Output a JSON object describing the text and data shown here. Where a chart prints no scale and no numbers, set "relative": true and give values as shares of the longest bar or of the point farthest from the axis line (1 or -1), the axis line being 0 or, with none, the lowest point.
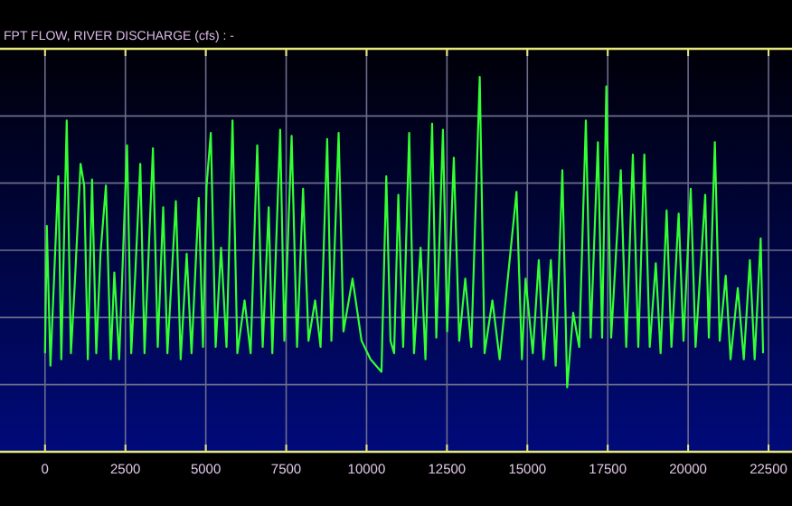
{
  "chart_data": {
    "type": "line",
    "title": "FPT FLOW, RIVER DISCHARGE (cfs) : -",
    "relative": true,
    "grid": true,
    "tick_labels": "x",
    "xlim": [
      -1400,
      23230
    ],
    "xticks": [
      0,
      2500,
      5000,
      7500,
      10000,
      12500,
      15000,
      17500,
      20000,
      22500
    ],
    "x": [
      0,
      56,
      169,
      413,
      506,
      675,
      806,
      919,
      1106,
      1219,
      1331,
      1463,
      1594,
      1725,
      1894,
      2044,
      2156,
      2306,
      2550,
      2681,
      2813,
      2963,
      3094,
      3356,
      3506,
      3675,
      3806,
      4069,
      4219,
      4406,
      4556,
      4781,
      4913,
      5025,
      5156,
      5306,
      5475,
      5644,
      5831,
      5981,
      6206,
      6394,
      6600,
      6769,
      6956,
      7069,
      7313,
      7444,
      7669,
      7838,
      8025,
      8194,
      8400,
      8569,
      8775,
      8906,
      9131,
      9281,
      9563,
      9844,
      10125,
      10463,
      10613,
      10744,
      10856,
      10988,
      11138,
      11325,
      11475,
      11681,
      11831,
      12038,
      12169,
      12375,
      12506,
      12713,
      12881,
      13069,
      13256,
      13519,
      13669,
      13913,
      14138,
      14663,
      14831,
      14944,
      15169,
      15356,
      15506,
      15731,
      15881,
      16088,
      16238,
      16425,
      16613,
      16819,
      16969,
      17194,
      17325,
      17456,
      17606,
      17906,
      18075,
      18281,
      18450,
      18638,
      18806,
      18994,
      19144,
      19331,
      19481,
      19706,
      19856,
      20081,
      20231,
      20531,
      20644,
      20831,
      20981,
      21169,
      21319,
      21544,
      21731,
      21919,
      22069,
      22256,
      22331
    ],
    "series": [
      {
        "color": "#33ff33",
        "values": [
          0.11,
          0.52,
          0.07,
          0.68,
          0.09,
          0.86,
          0.11,
          0.32,
          0.72,
          0.65,
          0.09,
          0.67,
          0.11,
          0.43,
          0.65,
          0.09,
          0.37,
          0.09,
          0.78,
          0.11,
          0.38,
          0.72,
          0.11,
          0.77,
          0.13,
          0.58,
          0.11,
          0.6,
          0.09,
          0.43,
          0.11,
          0.61,
          0.13,
          0.65,
          0.82,
          0.13,
          0.45,
          0.13,
          0.86,
          0.11,
          0.28,
          0.11,
          0.78,
          0.13,
          0.58,
          0.11,
          0.83,
          0.15,
          0.81,
          0.13,
          0.64,
          0.15,
          0.28,
          0.13,
          0.8,
          0.15,
          0.82,
          0.18,
          0.35,
          0.15,
          0.09,
          0.05,
          0.68,
          0.15,
          0.11,
          0.62,
          0.13,
          0.82,
          0.11,
          0.45,
          0.09,
          0.85,
          0.16,
          0.83,
          0.18,
          0.74,
          0.15,
          0.35,
          0.13,
          1,
          0.11,
          0.28,
          0.09,
          0.63,
          0.09,
          0.35,
          0.11,
          0.41,
          0.09,
          0.41,
          0.07,
          0.7,
          0,
          0.24,
          0.13,
          0.86,
          0.16,
          0.79,
          0.16,
          0.97,
          0.16,
          0.7,
          0.13,
          0.75,
          0.13,
          0.75,
          0.13,
          0.4,
          0.11,
          0.57,
          0.13,
          0.56,
          0.15,
          0.64,
          0.13,
          0.62,
          0.16,
          0.79,
          0.15,
          0.36,
          0.09,
          0.32,
          0.09,
          0.41,
          0.09,
          0.48,
          0.11
        ]
      }
    ]
  }
}
